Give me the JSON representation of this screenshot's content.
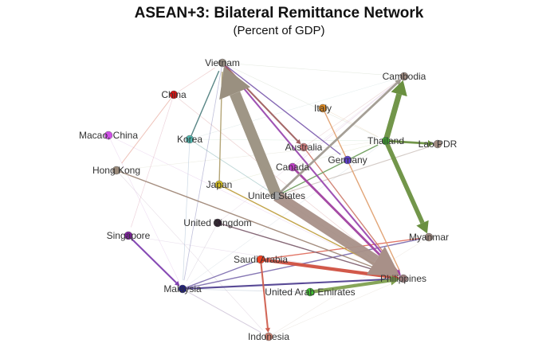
{
  "title": "ASEAN+3: Bilateral Remittance Network",
  "subtitle": "(Percent of GDP)",
  "nodes": [
    {
      "id": "Vietnam",
      "label": "Vietnam",
      "color": "#9a8f84"
    },
    {
      "id": "China",
      "label": "China",
      "color": "#e01010"
    },
    {
      "id": "Italy",
      "label": "Italy",
      "color": "#e08a20"
    },
    {
      "id": "Cambodia",
      "label": "Cambodia",
      "color": "#a08a80"
    },
    {
      "id": "Macao",
      "label": "Macao, China",
      "color": "#d050e8"
    },
    {
      "id": "Korea",
      "label": "Korea",
      "color": "#50b8b0"
    },
    {
      "id": "Australia",
      "label": "Australia",
      "color": "#d88080"
    },
    {
      "id": "Thailand",
      "label": "Thailand",
      "color": "#40a830"
    },
    {
      "id": "Lao",
      "label": "Lao PDR",
      "color": "#a08a80"
    },
    {
      "id": "Canada",
      "label": "Canada",
      "color": "#c040c8"
    },
    {
      "id": "Germany",
      "label": "Germany",
      "color": "#6040d0"
    },
    {
      "id": "HongKong",
      "label": "Hong Kong",
      "color": "#9a8a7a"
    },
    {
      "id": "Japan",
      "label": "Japan",
      "color": "#d8c020"
    },
    {
      "id": "US",
      "label": "United States",
      "color": "#a0a0a0"
    },
    {
      "id": "UK",
      "label": "United Kingdom",
      "color": "#302030"
    },
    {
      "id": "Singapore",
      "label": "Singapore",
      "color": "#8020a0"
    },
    {
      "id": "Myanmar",
      "label": "Myanmar",
      "color": "#a08a80"
    },
    {
      "id": "Saudi",
      "label": "Saudi Arabia",
      "color": "#f04020"
    },
    {
      "id": "Philippines",
      "label": "Philippines",
      "color": "#a08080"
    },
    {
      "id": "Malaysia",
      "label": "Malaysia",
      "color": "#202080"
    },
    {
      "id": "UAE",
      "label": "United Arab Emirates",
      "color": "#40c030"
    },
    {
      "id": "Indonesia",
      "label": "Indonesia",
      "color": "#d08070"
    }
  ],
  "edges": [
    {
      "from": "US",
      "to": "Vietnam",
      "weight": 10,
      "color": "#9a9080"
    },
    {
      "from": "US",
      "to": "Philippines",
      "weight": 10,
      "color": "#a89088"
    },
    {
      "from": "Thailand",
      "to": "Cambodia",
      "weight": 5,
      "color": "#6a9040"
    },
    {
      "from": "Thailand",
      "to": "Myanmar",
      "weight": 4,
      "color": "#6a9040"
    },
    {
      "from": "Thailand",
      "to": "Lao",
      "weight": 2,
      "color": "#6a9040"
    },
    {
      "from": "Saudi",
      "to": "Philippines",
      "weight": 3,
      "color": "#d05040"
    },
    {
      "from": "UAE",
      "to": "Philippines",
      "weight": 3,
      "color": "#80a050"
    },
    {
      "from": "Canada",
      "to": "Philippines",
      "weight": 2,
      "color": "#a040a0"
    },
    {
      "from": "US",
      "to": "Cambodia",
      "weight": 2,
      "color": "#a09a90"
    },
    {
      "from": "Vietnam",
      "to": "Philippines",
      "weight": 1.5,
      "color": "#9a4ab0"
    },
    {
      "from": "Vietnam",
      "to": "Germany",
      "weight": 1,
      "color": "#8060b0"
    },
    {
      "from": "Vietnam",
      "to": "Australia",
      "weight": 1.5,
      "color": "#a06060"
    },
    {
      "from": "Korea",
      "to": "Vietnam",
      "weight": 1,
      "color": "#508080"
    },
    {
      "from": "Japan",
      "to": "Vietnam",
      "weight": 1,
      "color": "#b0a070"
    },
    {
      "from": "Malaysia",
      "to": "Philippines",
      "weight": 1.5,
      "color": "#504090"
    },
    {
      "from": "Malaysia",
      "to": "Saudi",
      "weight": 1,
      "color": "#8070b0"
    },
    {
      "from": "Singapore",
      "to": "Malaysia",
      "weight": 1.5,
      "color": "#8040b0"
    },
    {
      "from": "Saudi",
      "to": "Myanmar",
      "weight": 1,
      "color": "#e07060"
    },
    {
      "from": "Saudi",
      "to": "Indonesia",
      "weight": 1.5,
      "color": "#d06050"
    },
    {
      "from": "Malaysia",
      "to": "Myanmar",
      "weight": 1,
      "color": "#8070b0"
    },
    {
      "from": "Malaysia",
      "to": "Indonesia",
      "weight": 0.7,
      "color": "#b0a0c0"
    },
    {
      "from": "Japan",
      "to": "Philippines",
      "weight": 1,
      "color": "#c0a040"
    },
    {
      "from": "UK",
      "to": "Philippines",
      "weight": 1,
      "color": "#806070"
    },
    {
      "from": "HongKong",
      "to": "Philippines",
      "weight": 1,
      "color": "#a08878"
    },
    {
      "from": "Italy",
      "to": "Philippines",
      "weight": 1,
      "color": "#e0a070"
    },
    {
      "from": "Australia",
      "to": "Philippines",
      "weight": 1,
      "color": "#d08070"
    },
    {
      "from": "US",
      "to": "Thailand",
      "weight": 1,
      "color": "#70a060"
    },
    {
      "from": "US",
      "to": "Lao",
      "weight": 0.8,
      "color": "#b0a098"
    },
    {
      "from": "China",
      "to": "HongKong",
      "weight": 0.7,
      "color": "#e09080"
    },
    {
      "from": "China",
      "to": "Vietnam",
      "weight": 0.5,
      "color": "#e0a0a0"
    },
    {
      "from": "China",
      "to": "Philippines",
      "weight": 0.5,
      "color": "#e0b0b0"
    },
    {
      "from": "China",
      "to": "Singapore",
      "weight": 0.5,
      "color": "#e0b0c0"
    },
    {
      "from": "Korea",
      "to": "Philippines",
      "weight": 0.6,
      "color": "#80b0b0"
    },
    {
      "from": "Korea",
      "to": "Malaysia",
      "weight": 0.5,
      "color": "#a0b8d0"
    },
    {
      "from": "Vietnam",
      "to": "Malaysia",
      "weight": 0.6,
      "color": "#9090c0"
    },
    {
      "from": "HongKong",
      "to": "Indonesia",
      "weight": 0.4,
      "color": "#d0c0d0"
    },
    {
      "from": "Macao",
      "to": "Philippines",
      "weight": 0.4,
      "color": "#e0c0e8"
    },
    {
      "from": "Macao",
      "to": "Malaysia",
      "weight": 0.4,
      "color": "#e0c0e8"
    },
    {
      "from": "Vietnam",
      "to": "Cambodia",
      "weight": 0.4,
      "color": "#d0d8c8"
    },
    {
      "from": "Vietnam",
      "to": "Thailand",
      "weight": 0.4,
      "color": "#d0d8c8"
    },
    {
      "from": "HongKong",
      "to": "Thailand",
      "weight": 0.4,
      "color": "#e0e0d0"
    },
    {
      "from": "Korea",
      "to": "Thailand",
      "weight": 0.4,
      "color": "#c8e0d0"
    },
    {
      "from": "Japan",
      "to": "Thailand",
      "weight": 0.4,
      "color": "#d8e0c0"
    },
    {
      "from": "Germany",
      "to": "Thailand",
      "weight": 0.6,
      "color": "#a0b080"
    },
    {
      "from": "Malaysia",
      "to": "Thailand",
      "weight": 0.4,
      "color": "#d0d8e0"
    },
    {
      "from": "Indonesia",
      "to": "Philippines",
      "weight": 0.4,
      "color": "#e0d8d0"
    },
    {
      "from": "Indonesia",
      "to": "Myanmar",
      "weight": 0.4,
      "color": "#e0d8d0"
    },
    {
      "from": "UK",
      "to": "Cambodia",
      "weight": 0.4,
      "color": "#e0d0e0"
    },
    {
      "from": "Australia",
      "to": "Cambodia",
      "weight": 0.5,
      "color": "#e0c0c0"
    },
    {
      "from": "Canada",
      "to": "Cambodia",
      "weight": 0.5,
      "color": "#e0c0e0"
    },
    {
      "from": "Italy",
      "to": "Thailand",
      "weight": 0.4,
      "color": "#e8d0b0"
    },
    {
      "from": "Malaysia",
      "to": "UAE",
      "weight": 0.5,
      "color": "#b0c0d0"
    },
    {
      "from": "Singapore",
      "to": "Philippines",
      "weight": 0.4,
      "color": "#d8c8e0"
    },
    {
      "from": "Korea",
      "to": "Cambodia",
      "weight": 0.4,
      "color": "#d0e0e0"
    },
    {
      "from": "UK",
      "to": "Malaysia",
      "weight": 0.4,
      "color": "#c8c0d0"
    }
  ]
}
